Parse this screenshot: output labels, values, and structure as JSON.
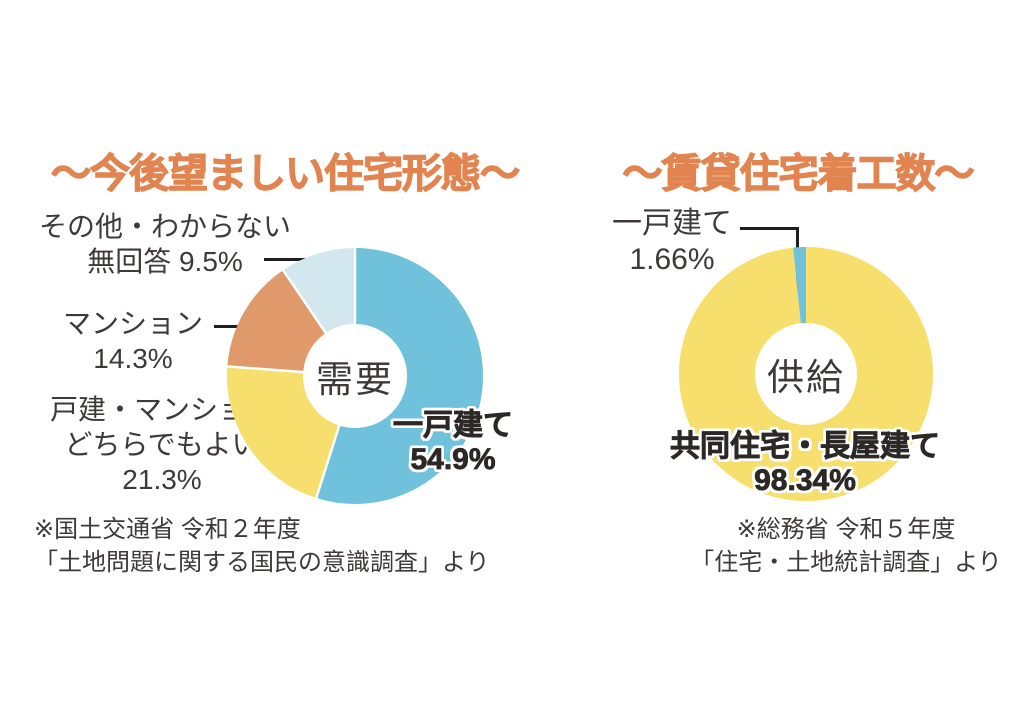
{
  "page": {
    "background": "#ffffff",
    "text_color": "#3E3A39",
    "accent_orange": "#E28450",
    "leader_line_color": "#1E1E1E"
  },
  "chart_data": [
    {
      "type": "pie",
      "variant": "donut",
      "title": "～今後望ましい住宅形態～",
      "center_label": "需要",
      "units": "%",
      "start_angle_deg": -90,
      "direction": "clockwise",
      "separators": true,
      "segments": [
        {
          "label": "一戸建て",
          "value": 54.9,
          "color": "#6FC1DC"
        },
        {
          "label": "戸建・マンション どちらでもよい",
          "value": 21.3,
          "color": "#F7DF6D"
        },
        {
          "label": "マンション",
          "value": 14.3,
          "color": "#E0996A"
        },
        {
          "label": "その他・わからない 無回答",
          "value": 9.5,
          "color": "#D3E7EF"
        }
      ],
      "callouts": [
        {
          "lines": [
            "その他・わからない",
            "無回答 9.5%"
          ]
        },
        {
          "lines": [
            "マンション",
            "14.3%"
          ]
        },
        {
          "lines": [
            "戸建・マンション",
            "どちらでもよい",
            "21.3%"
          ]
        }
      ],
      "big_label": {
        "lines": [
          "一戸建て",
          "54.9%"
        ]
      },
      "source": [
        "※国土交通省 令和２年度",
        "「土地問題に関する国民の意識調査」より"
      ]
    },
    {
      "type": "pie",
      "variant": "donut",
      "title": "～賃貸住宅着工数～",
      "center_label": "供給",
      "units": "%",
      "start_angle_deg": -90,
      "direction": "clockwise",
      "separators": false,
      "segments": [
        {
          "label": "共同住宅・長屋建て",
          "value": 98.34,
          "color": "#F7DF6D"
        },
        {
          "label": "一戸建て",
          "value": 1.66,
          "color": "#6FC1DC"
        }
      ],
      "callouts": [
        {
          "lines": [
            "一戸建て",
            "1.66%"
          ]
        }
      ],
      "big_label": {
        "lines": [
          "共同住宅・長屋建て",
          "98.34%"
        ]
      },
      "source": [
        "※総務省 令和５年度",
        "「住宅・土地統計調査」より"
      ]
    }
  ]
}
